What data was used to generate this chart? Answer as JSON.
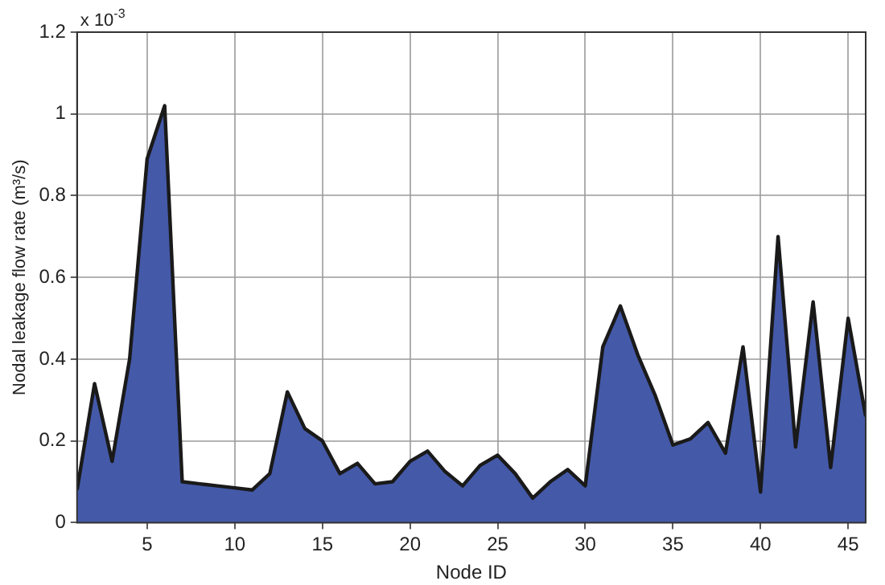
{
  "chart_data": {
    "type": "area",
    "xlabel": "Node ID",
    "ylabel": "Nodal leakage flow rate (m³/s)",
    "annotations": [
      "x 10$^{-3}$"
    ],
    "x": [
      1,
      2,
      3,
      4,
      5,
      6,
      7,
      8,
      9,
      10,
      11,
      12,
      13,
      14,
      15,
      16,
      17,
      18,
      19,
      20,
      21,
      22,
      23,
      24,
      25,
      26,
      27,
      28,
      29,
      30,
      31,
      32,
      33,
      34,
      35,
      36,
      37,
      38,
      39,
      40,
      41,
      42,
      43,
      44,
      45,
      46
    ],
    "series": [
      {
        "color": "#4459a8",
        "values": [
          0.08,
          0.34,
          0.15,
          0.4,
          0.89,
          1.02,
          0.1,
          0.095,
          0.09,
          0.085,
          0.08,
          0.12,
          0.32,
          0.23,
          0.2,
          0.12,
          0.145,
          0.095,
          0.1,
          0.15,
          0.175,
          0.125,
          0.09,
          0.14,
          0.165,
          0.12,
          0.06,
          0.1,
          0.13,
          0.09,
          0.43,
          0.53,
          0.41,
          0.31,
          0.19,
          0.205,
          0.245,
          0.17,
          0.43,
          0.075,
          0.7,
          0.185,
          0.54,
          0.135,
          0.5,
          0.26
        ]
      }
    ],
    "xlim": [
      1,
      46
    ],
    "xticks": [
      5,
      10,
      15,
      20,
      25,
      30,
      35,
      40,
      45
    ],
    "ylim": [
      0,
      1.2
    ],
    "yticks": [
      0,
      0.2,
      0.4,
      0.6,
      0.8,
      1,
      1.2
    ],
    "grid": true,
    "line_style": "solid",
    "marker": "none"
  }
}
